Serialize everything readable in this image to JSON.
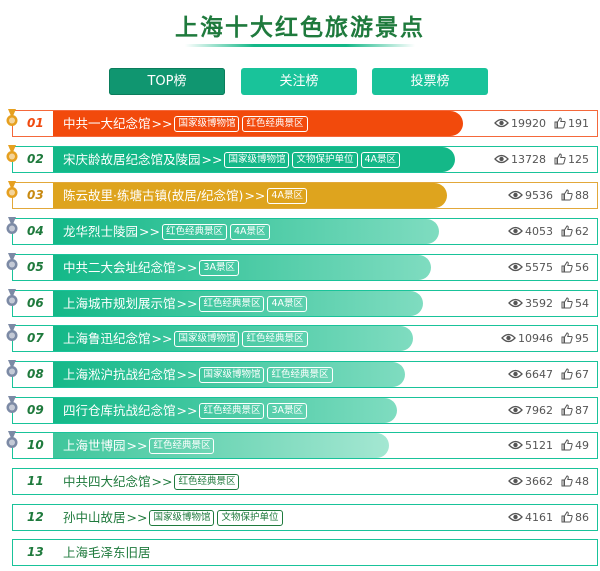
{
  "page_title": "上海十大红色旅游景点",
  "tabs": [
    {
      "label": "TOP榜",
      "active": true
    },
    {
      "label": "关注榜",
      "active": false
    },
    {
      "label": "投票榜",
      "active": false
    }
  ],
  "arrow_text": ">>",
  "medal_colors": {
    "top": "#e6a020",
    "rest": "#7c8aa5"
  },
  "rows": [
    {
      "rank": "01",
      "name": "中共一大纪念馆",
      "tags": [
        "国家级博物馆",
        "红色经典景区"
      ],
      "views": "19920",
      "likes": "191"
    },
    {
      "rank": "02",
      "name": "宋庆龄故居纪念馆及陵园",
      "tags": [
        "国家级博物馆",
        "文物保护单位",
        "4A景区"
      ],
      "views": "13728",
      "likes": "125"
    },
    {
      "rank": "03",
      "name": "陈云故里·练塘古镇(故居/纪念馆)",
      "tags": [
        "4A景区"
      ],
      "views": "9536",
      "likes": "88"
    },
    {
      "rank": "04",
      "name": "龙华烈士陵园",
      "tags": [
        "红色经典景区",
        "4A景区"
      ],
      "views": "4053",
      "likes": "62"
    },
    {
      "rank": "05",
      "name": "中共二大会址纪念馆",
      "tags": [
        "3A景区"
      ],
      "views": "5575",
      "likes": "56"
    },
    {
      "rank": "06",
      "name": "上海城市规划展示馆",
      "tags": [
        "红色经典景区",
        "4A景区"
      ],
      "views": "3592",
      "likes": "54"
    },
    {
      "rank": "07",
      "name": "上海鲁迅纪念馆",
      "tags": [
        "国家级博物馆",
        "红色经典景区"
      ],
      "views": "10946",
      "likes": "95"
    },
    {
      "rank": "08",
      "name": "上海淞沪抗战纪念馆",
      "tags": [
        "国家级博物馆",
        "红色经典景区"
      ],
      "views": "6647",
      "likes": "67"
    },
    {
      "rank": "09",
      "name": "四行仓库抗战纪念馆",
      "tags": [
        "红色经典景区",
        "3A景区"
      ],
      "views": "7962",
      "likes": "87"
    },
    {
      "rank": "10",
      "name": "上海世博园",
      "tags": [
        "红色经典景区"
      ],
      "views": "5121",
      "likes": "49"
    },
    {
      "rank": "11",
      "name": "中共四大纪念馆",
      "tags": [
        "红色经典景区"
      ],
      "views": "3662",
      "likes": "48"
    },
    {
      "rank": "12",
      "name": "孙中山故居",
      "tags": [
        "国家级博物馆",
        "文物保护单位"
      ],
      "views": "4161",
      "likes": "86"
    },
    {
      "rank": "13",
      "name": "上海毛泽东旧居",
      "tags": [],
      "views": "",
      "likes": ""
    }
  ]
}
